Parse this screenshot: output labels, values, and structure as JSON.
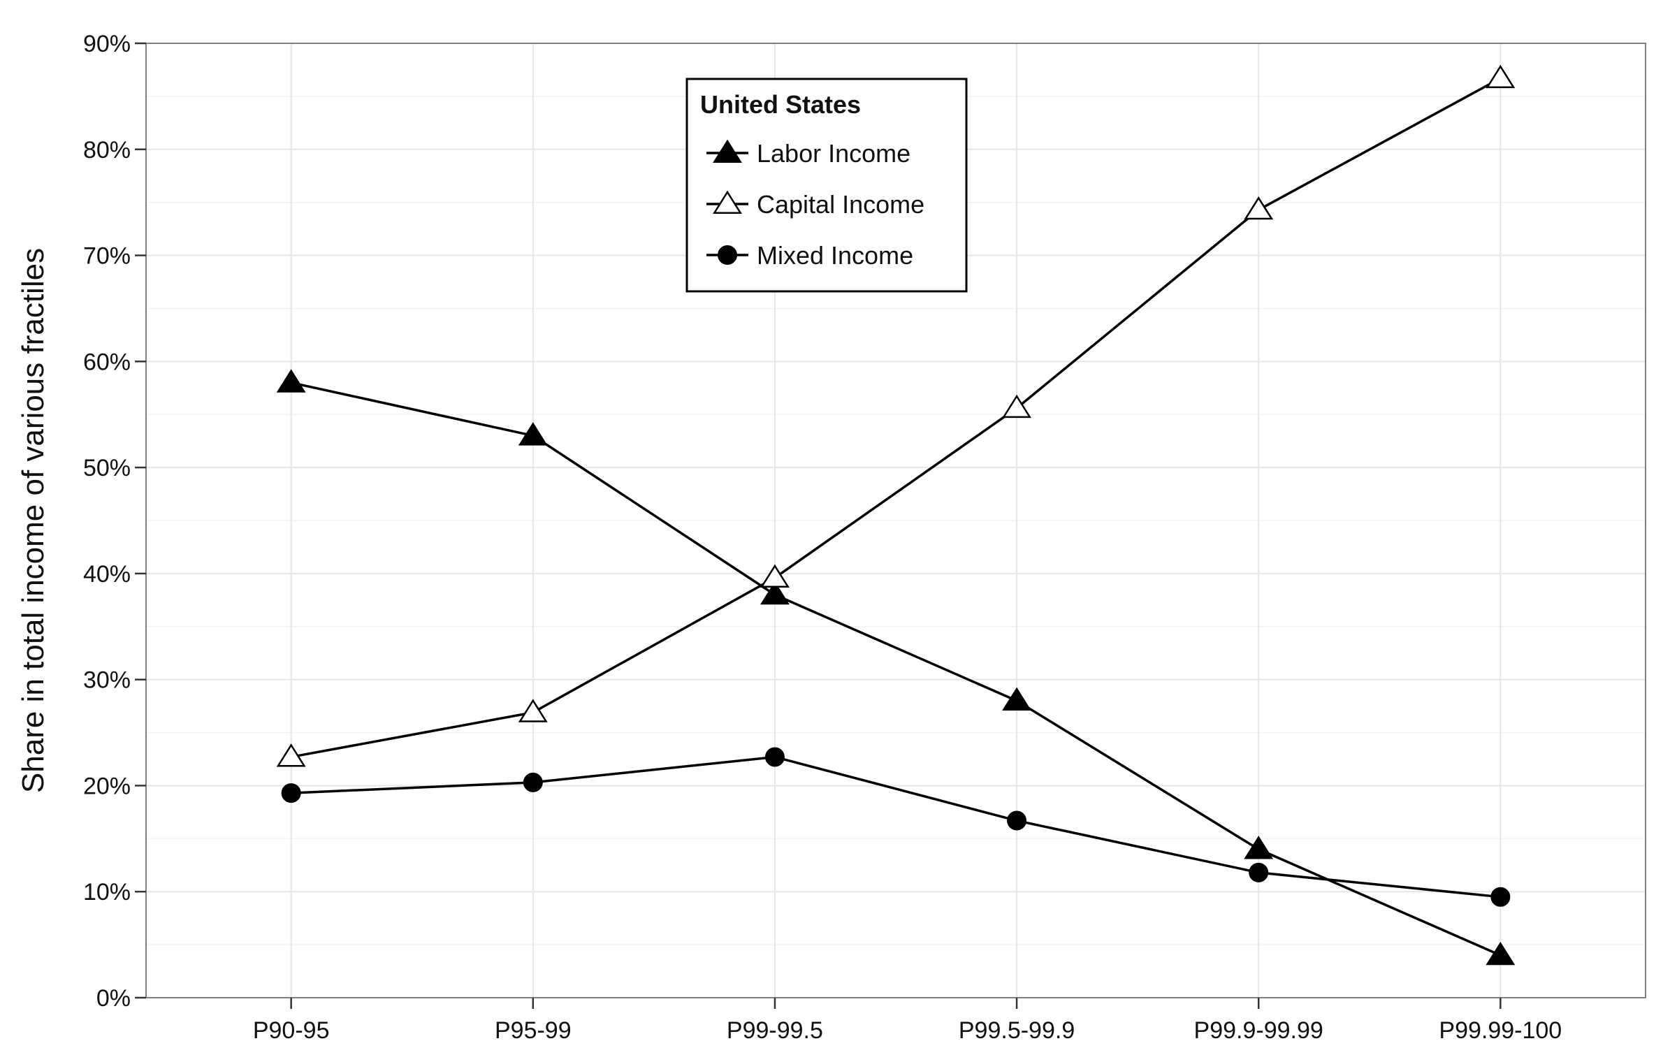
{
  "chart_data": {
    "type": "line",
    "categories": [
      "P90-95",
      "P95-99",
      "P99-99.5",
      "P99.5-99.9",
      "P99.9-99.99",
      "P99.99-100"
    ],
    "series": [
      {
        "name": "Labor Income",
        "marker": "filled-triangle",
        "values": [
          58.0,
          53.0,
          38.0,
          28.0,
          14.0,
          4.0
        ]
      },
      {
        "name": "Capital Income",
        "marker": "open-triangle",
        "values": [
          22.7,
          26.9,
          39.6,
          55.6,
          74.3,
          86.7
        ]
      },
      {
        "name": "Mixed Income",
        "marker": "filled-circle",
        "values": [
          19.3,
          20.3,
          22.7,
          16.7,
          11.8,
          9.5
        ]
      }
    ],
    "title": "",
    "xlabel": "",
    "ylabel": "Share in total income of various fractiles",
    "ylim": [
      0,
      90
    ],
    "yticks": [
      0,
      10,
      20,
      30,
      40,
      50,
      60,
      70,
      80,
      90
    ],
    "ytick_labels": [
      "0%",
      "10%",
      "20%",
      "30%",
      "40%",
      "50%",
      "60%",
      "70%",
      "80%",
      "90%"
    ],
    "legend": {
      "title": "United States",
      "position": "top-center"
    },
    "grid": true,
    "colors": {
      "line": "#000000",
      "grid": "#e6e6e6",
      "panel_border": "#7f7f7f"
    }
  }
}
